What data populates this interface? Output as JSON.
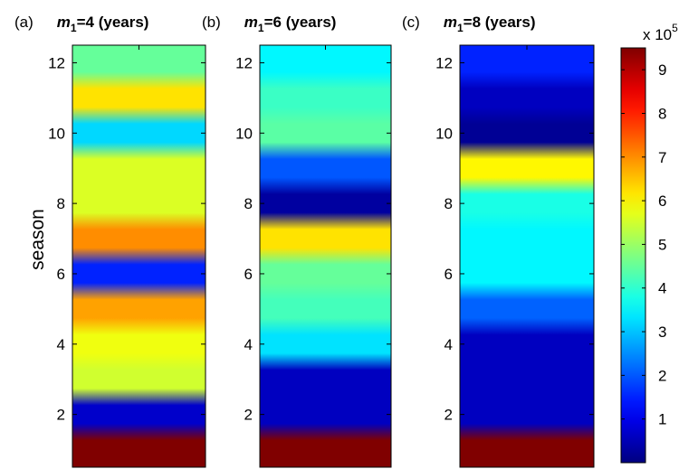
{
  "chart_data": {
    "type": "heatmap",
    "ylabel": "season",
    "ylim": [
      0.5,
      12.5
    ],
    "yticks": [
      2,
      4,
      6,
      8,
      10,
      12
    ],
    "grid": false,
    "colormap": "jet",
    "colorbar": {
      "multiplier_label": "x 10",
      "multiplier_exponent": "5",
      "range": [
        0,
        9.5
      ],
      "ticks": [
        1,
        2,
        3,
        4,
        5,
        6,
        7,
        8,
        9
      ]
    },
    "panels": [
      {
        "label": "(a)",
        "var": "m",
        "sub": "1",
        "title_rest": "=4 (years)",
        "seasons": [
          1,
          2,
          3,
          4,
          5,
          6,
          7,
          8,
          9,
          10,
          11,
          12
        ],
        "values": [
          9.5,
          0.7,
          5.5,
          5.8,
          6.8,
          1.5,
          7.0,
          5.6,
          5.6,
          3.2,
          6.2,
          4.5
        ]
      },
      {
        "label": "(b)",
        "var": "m",
        "sub": "1",
        "title_rest": "=6 (years)",
        "seasons": [
          1,
          2,
          3,
          4,
          5,
          6,
          7,
          8,
          9,
          10,
          11,
          12
        ],
        "values": [
          9.5,
          0.6,
          0.6,
          3.3,
          4.2,
          4.5,
          6.2,
          0.3,
          2.0,
          4.4,
          4.1,
          3.5
        ]
      },
      {
        "label": "(c)",
        "var": "m",
        "sub": "1",
        "title_rest": "=8 (years)",
        "seasons": [
          1,
          2,
          3,
          4,
          5,
          6,
          7,
          8,
          9,
          10,
          11,
          12
        ],
        "values": [
          9.5,
          0.6,
          0.6,
          0.6,
          2.1,
          3.5,
          3.5,
          3.8,
          6.0,
          0.2,
          0.6,
          1.5
        ]
      }
    ]
  }
}
